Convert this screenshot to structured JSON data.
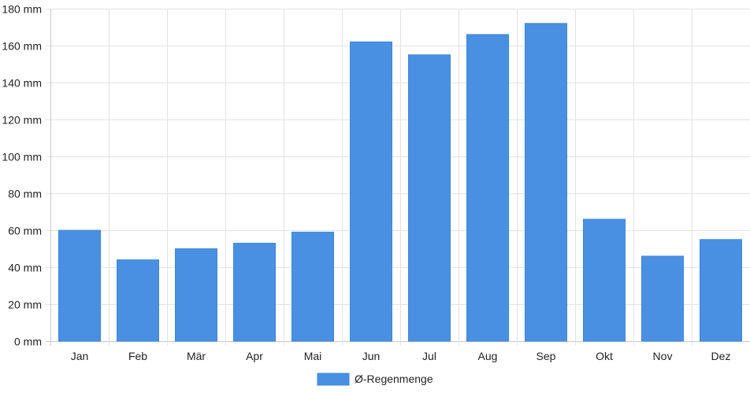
{
  "chart_data": {
    "type": "bar",
    "title": "",
    "xlabel": "",
    "ylabel": "",
    "categories": [
      "Jan",
      "Feb",
      "Mär",
      "Apr",
      "Mai",
      "Jun",
      "Jul",
      "Aug",
      "Sep",
      "Okt",
      "Nov",
      "Dez"
    ],
    "series": [
      {
        "name": "Ø-Regenmenge",
        "color": "#4a90e2",
        "values": [
          60,
          44,
          50,
          53,
          59,
          162,
          155,
          166,
          172,
          66,
          46,
          55
        ]
      }
    ],
    "ylim": [
      0,
      180
    ],
    "y_ticks": [
      {
        "value": 0,
        "label": "0 mm"
      },
      {
        "value": 20,
        "label": "20 mm"
      },
      {
        "value": 40,
        "label": "40 mm"
      },
      {
        "value": 60,
        "label": "60 mm"
      },
      {
        "value": 80,
        "label": "80 mm"
      },
      {
        "value": 100,
        "label": "100 mm"
      },
      {
        "value": 120,
        "label": "120 mm"
      },
      {
        "value": 140,
        "label": "140 mm"
      },
      {
        "value": 160,
        "label": "160 mm"
      },
      {
        "value": 180,
        "label": "180 mm"
      }
    ],
    "grid": true,
    "legend_position": "bottom"
  }
}
